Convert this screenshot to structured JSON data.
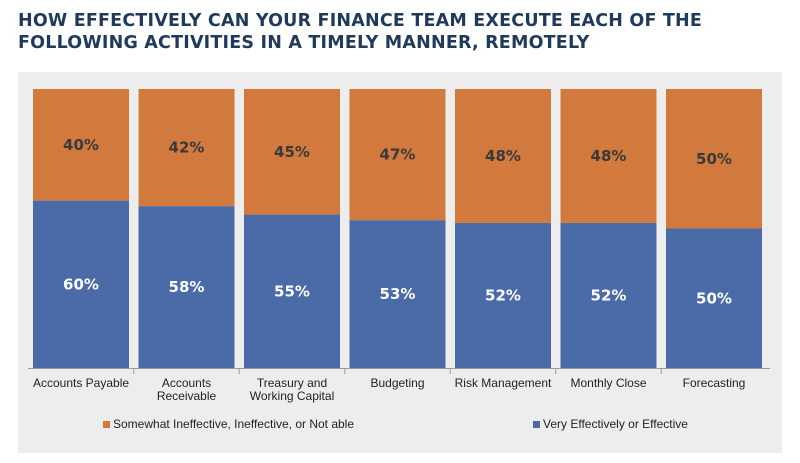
{
  "title": "HOW EFFECTIVELY CAN YOUR FINANCE TEAM EXECUTE EACH OF THE FOLLOWING ACTIVITIES IN A TIMELY MANNER, REMOTELY",
  "colors": {
    "top": "#d27a3e",
    "bottom": "#4a6aa8",
    "top_label": "#3a3a3a",
    "bottom_label": "#ffffff"
  },
  "chart_data": {
    "type": "bar",
    "stacked": true,
    "categories": [
      [
        "Accounts Payable"
      ],
      [
        "Accounts",
        "Receivable"
      ],
      [
        "Treasury and",
        "Working Capital"
      ],
      [
        "Budgeting"
      ],
      [
        "Risk Management"
      ],
      [
        "Monthly Close"
      ],
      [
        "Forecasting"
      ]
    ],
    "series": [
      {
        "name": "Very Effectively or Effective",
        "values": [
          60,
          58,
          55,
          53,
          52,
          52,
          50
        ],
        "labels": [
          "60%",
          "58%",
          "55%",
          "53%",
          "52%",
          "52%",
          "50%"
        ]
      },
      {
        "name": "Somewhat Ineffective, Ineffective, or Not able",
        "values": [
          40,
          42,
          45,
          47,
          48,
          48,
          50
        ],
        "labels": [
          "40%",
          "42%",
          "45%",
          "47%",
          "48%",
          "48%",
          "50%"
        ]
      }
    ],
    "ylim": [
      0,
      100
    ],
    "legend": {
      "position": "bottom",
      "items": [
        "Somewhat Ineffective, Ineffective, or Not able",
        "Very Effectively or Effective"
      ]
    }
  }
}
